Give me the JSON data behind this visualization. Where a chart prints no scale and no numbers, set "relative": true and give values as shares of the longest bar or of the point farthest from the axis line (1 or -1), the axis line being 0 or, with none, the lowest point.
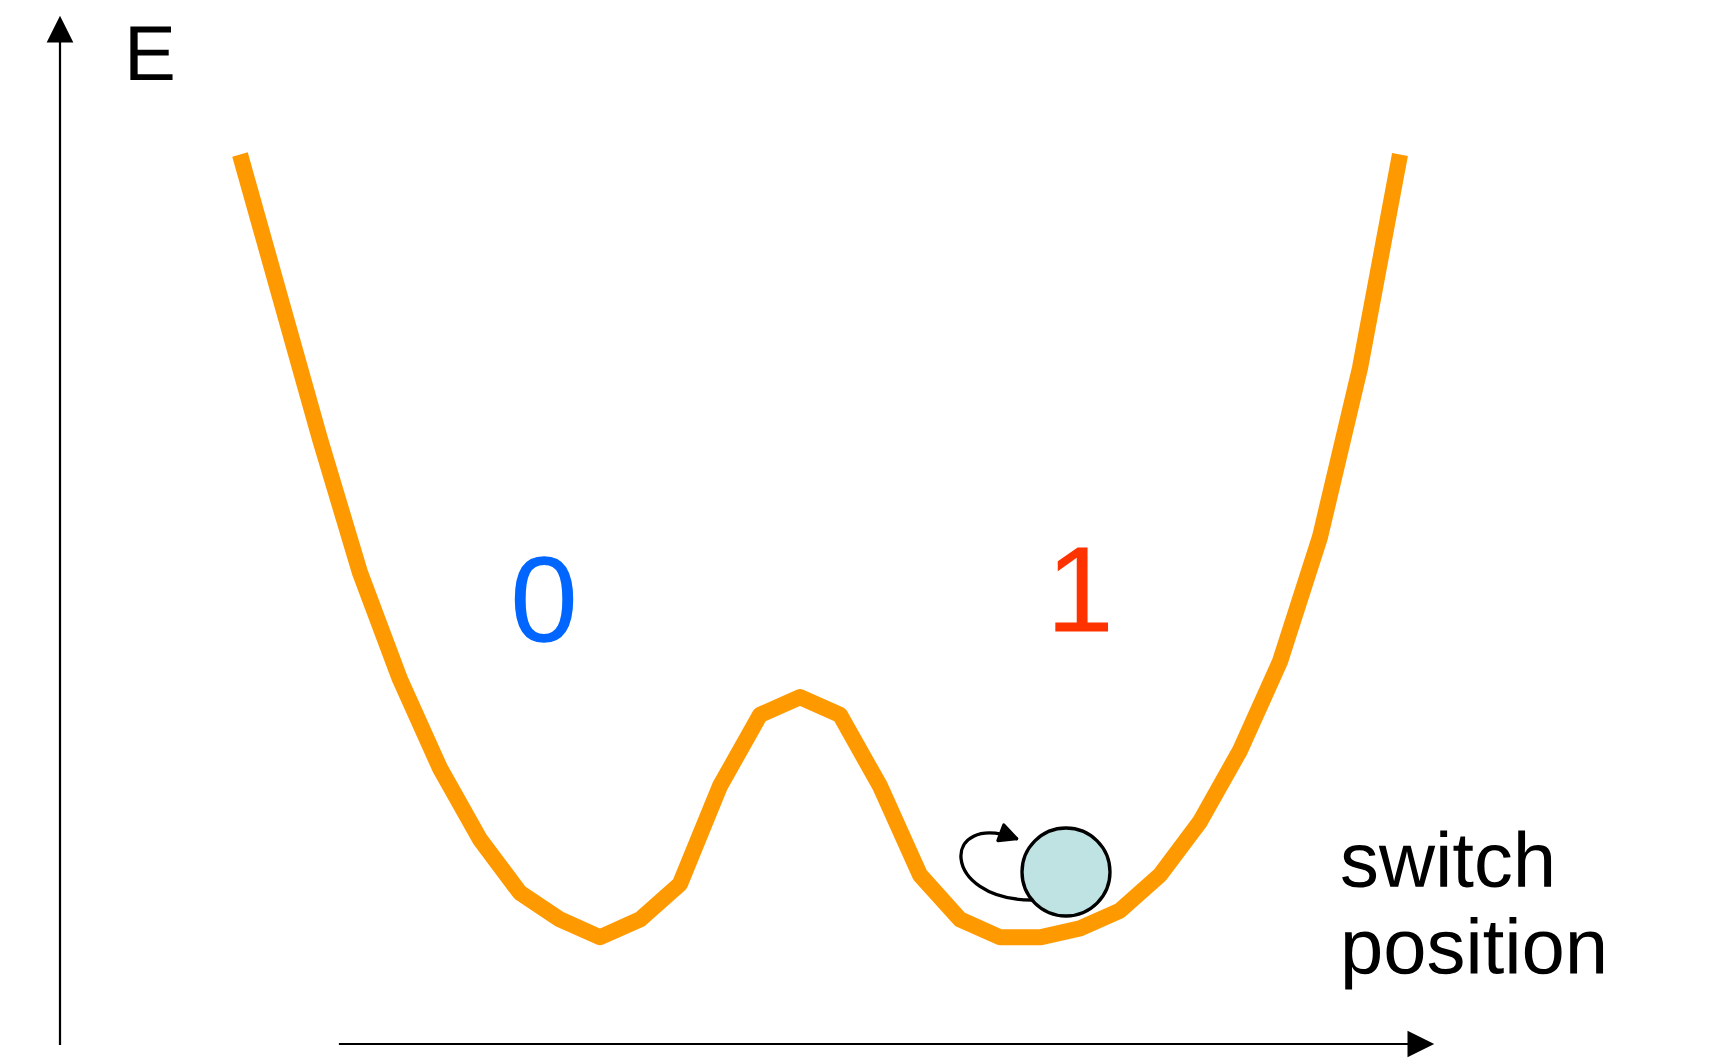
{
  "chart_data": {
    "type": "line",
    "relative": true,
    "xlabel": "switch position",
    "ylabel": "E",
    "color": "#ff9900",
    "categories": [
      null,
      null,
      null,
      null,
      null,
      null,
      null,
      null,
      null,
      null,
      null,
      null,
      null,
      null,
      null,
      null,
      null,
      null,
      null,
      null,
      null,
      null,
      null,
      null,
      null,
      null,
      null,
      null,
      null,
      null
    ],
    "values": [
      1.0,
      0.84,
      0.68,
      0.53,
      0.41,
      0.31,
      0.23,
      0.17,
      0.14,
      0.12,
      0.14,
      0.18,
      0.29,
      0.37,
      0.39,
      0.37,
      0.29,
      0.19,
      0.14,
      0.12,
      0.12,
      0.13,
      0.15,
      0.19,
      0.25,
      0.33,
      0.43,
      0.57,
      0.76,
      1.0
    ],
    "annotations": [
      "0",
      "1"
    ],
    "grid": false,
    "legend": false,
    "marker": "none",
    "line_style": "solid"
  }
}
